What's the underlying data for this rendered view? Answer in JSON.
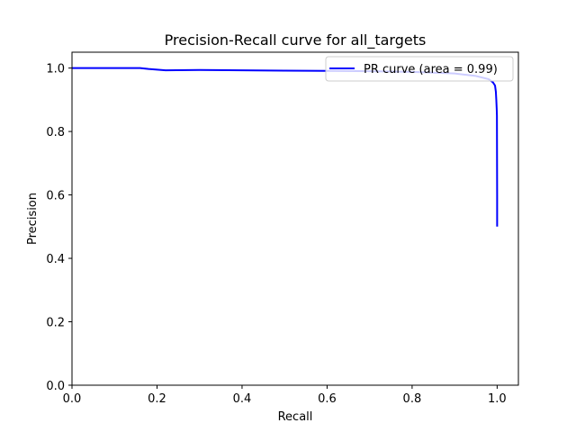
{
  "chart_data": {
    "type": "line",
    "title": "Precision-Recall curve for all_targets",
    "xlabel": "Recall",
    "ylabel": "Precision",
    "xlim": [
      0.0,
      1.05
    ],
    "ylim": [
      0.0,
      1.05
    ],
    "xticks": [
      "0.0",
      "0.2",
      "0.4",
      "0.6",
      "0.8",
      "1.0"
    ],
    "yticks": [
      "0.0",
      "0.2",
      "0.4",
      "0.6",
      "0.8",
      "1.0"
    ],
    "grid": false,
    "legend_position": "top-right",
    "series": [
      {
        "name": "PR curve (area = 0.99)",
        "color": "#0000ff",
        "points": [
          [
            0.0,
            1.0
          ],
          [
            0.16,
            1.0
          ],
          [
            0.18,
            0.997
          ],
          [
            0.2,
            0.995
          ],
          [
            0.22,
            0.993
          ],
          [
            0.3,
            0.994
          ],
          [
            0.4,
            0.993
          ],
          [
            0.5,
            0.992
          ],
          [
            0.6,
            0.991
          ],
          [
            0.7,
            0.99
          ],
          [
            0.8,
            0.988
          ],
          [
            0.9,
            0.983
          ],
          [
            0.95,
            0.975
          ],
          [
            0.98,
            0.965
          ],
          [
            0.99,
            0.955
          ],
          [
            0.995,
            0.945
          ],
          [
            0.997,
            0.925
          ],
          [
            0.998,
            0.9
          ],
          [
            0.999,
            0.87
          ],
          [
            0.9995,
            0.85
          ],
          [
            1.0,
            0.6
          ],
          [
            1.0,
            0.5
          ]
        ]
      }
    ]
  }
}
